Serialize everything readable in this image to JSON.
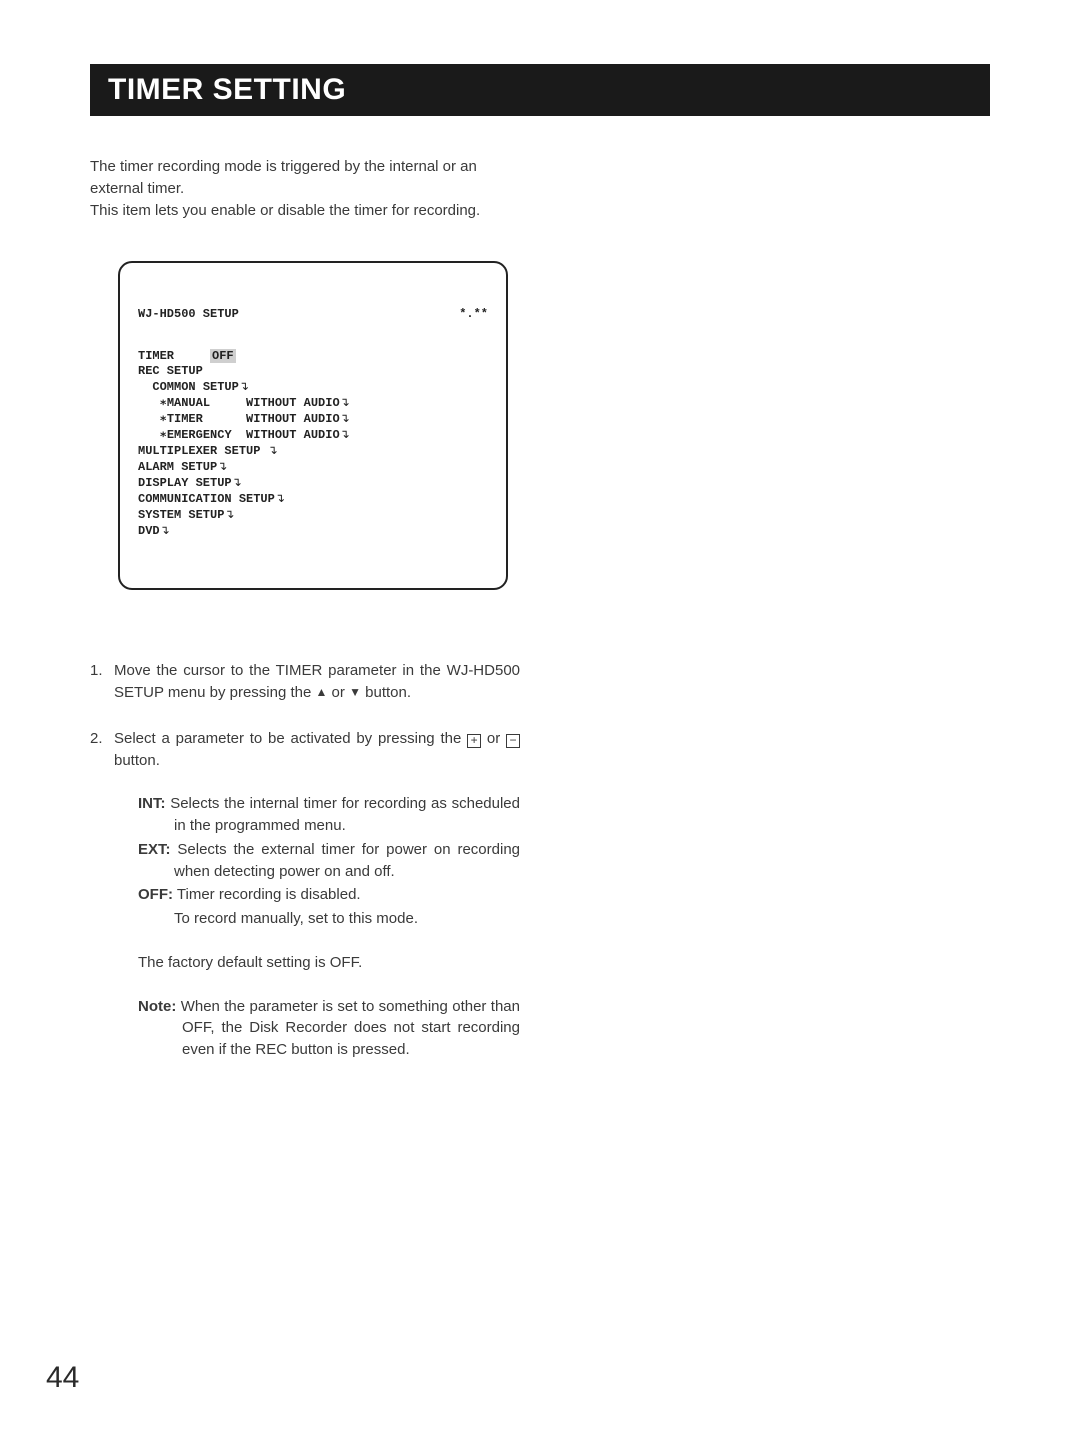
{
  "header": {
    "title": "TIMER SETTING"
  },
  "intro": {
    "line1": "The timer recording mode is triggered by the internal or an external timer.",
    "line2": "This item lets you enable or disable the timer for recording."
  },
  "screen": {
    "title": "WJ-HD500 SETUP",
    "version": "*.**",
    "timer_label": "TIMER",
    "timer_value": "OFF",
    "rec_setup": "REC SETUP",
    "common_setup": "COMMON SETUP",
    "manual_row": "   ∗MANUAL     WITHOUT AUDIO",
    "timer_row": "   ∗TIMER      WITHOUT AUDIO",
    "emerg_row": "   ∗EMERGENCY  WITHOUT AUDIO",
    "multiplexer": "MULTIPLEXER SETUP ",
    "alarm": "ALARM SETUP",
    "display": "DISPLAY SETUP",
    "comm": "COMMUNICATION SETUP",
    "system": "SYSTEM SETUP",
    "dvd": "DVD",
    "arrow": "↴"
  },
  "steps": {
    "s1a": "Move the cursor to the TIMER parameter in the WJ-HD500 SETUP menu by pressing the ",
    "s1b": " or ",
    "s1c": " button.",
    "s2a": "Select a parameter to be activated by pressing the ",
    "s2b": " or ",
    "s2c": " button.",
    "tri_up": "▲",
    "tri_down": "▼",
    "plus": "+",
    "minus": "−"
  },
  "defs": {
    "int_label": "INT:",
    "int_text": " Selects the internal timer for recording as sched­uled in the programmed menu.",
    "ext_label": "EXT:",
    "ext_text": " Selects the external timer for power on recording when detecting power on and off.",
    "off_label": "OFF:",
    "off_text": " Timer recording is disabled.",
    "off_cont": "To record manually, set to this mode."
  },
  "factory": "The factory default setting is OFF.",
  "note": {
    "label": "Note:",
    "text": " When the parameter is set to something other than OFF, the Disk Recorder does not start record­ing even if the REC button is pressed."
  },
  "page_number": "44"
}
